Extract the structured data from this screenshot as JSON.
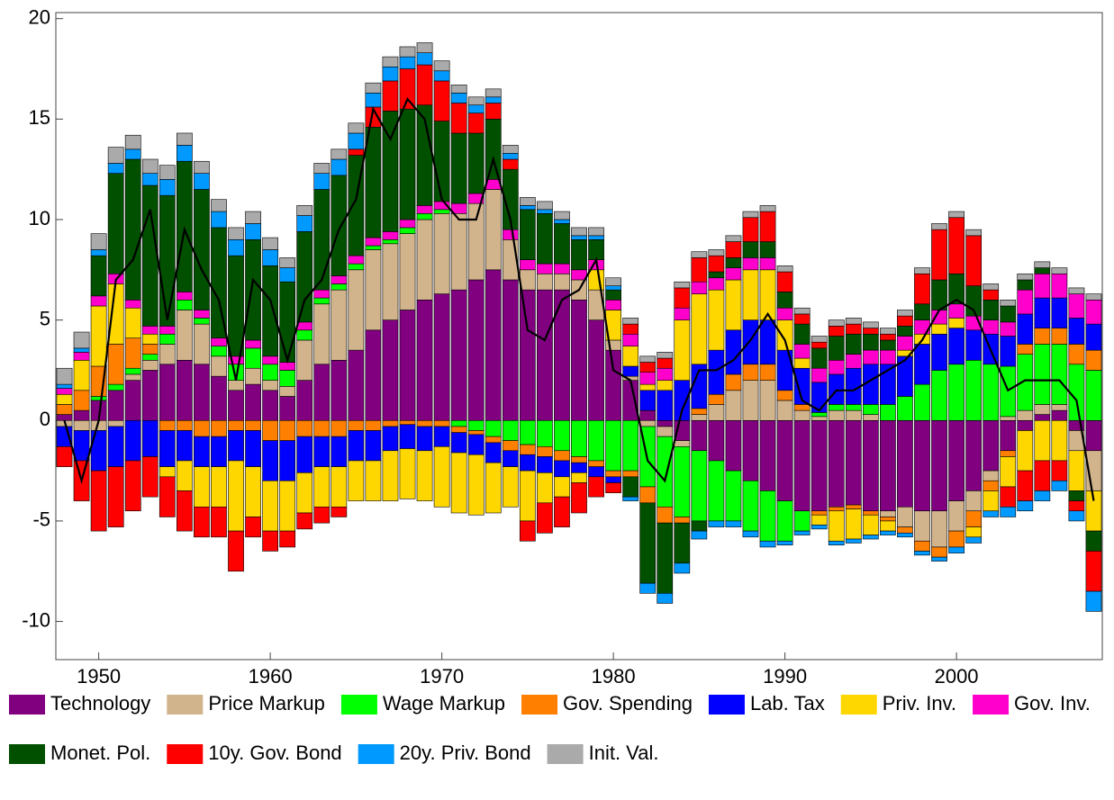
{
  "chart_data": {
    "type": "stacked-bar",
    "x": [
      1948,
      1949,
      1950,
      1951,
      1952,
      1953,
      1954,
      1955,
      1956,
      1957,
      1958,
      1959,
      1960,
      1961,
      1962,
      1963,
      1964,
      1965,
      1966,
      1967,
      1968,
      1969,
      1970,
      1971,
      1972,
      1973,
      1974,
      1975,
      1976,
      1977,
      1978,
      1979,
      1980,
      1981,
      1982,
      1983,
      1984,
      1985,
      1986,
      1987,
      1988,
      1989,
      1990,
      1991,
      1992,
      1993,
      1994,
      1995,
      1996,
      1997,
      1998,
      1999,
      2000,
      2001,
      2002,
      2003,
      2004,
      2005,
      2006,
      2007,
      2008
    ],
    "xlim": [
      1947.5,
      2008.5
    ],
    "xticks": [
      1950,
      1960,
      1970,
      1980,
      1990,
      2000
    ],
    "ylim": [
      -11.9,
      20.3
    ],
    "yticks": [
      -10,
      -5,
      0,
      5,
      10,
      15,
      20
    ],
    "series": [
      {
        "name": "Technology",
        "color": "#800080",
        "values": [
          0.3,
          0.5,
          1,
          1.5,
          2,
          2.5,
          2.8,
          3,
          2.8,
          2.2,
          1.5,
          1.8,
          1.5,
          1.2,
          2,
          2.8,
          3,
          3.5,
          4.5,
          5,
          5.5,
          6,
          6.3,
          6.5,
          7,
          7.5,
          7,
          6.5,
          6.5,
          6.5,
          6,
          5,
          3.5,
          2,
          0.5,
          -0.3,
          -1,
          -1.5,
          -2,
          -2.5,
          -3,
          -3.5,
          -4,
          -4.5,
          -4.5,
          -4.3,
          -4.2,
          -4.5,
          -4.5,
          -4.3,
          -4.5,
          -4.5,
          -4,
          -3.5,
          -2.5,
          -1.5,
          -0.5,
          0.3,
          0.5,
          -0.5,
          -1.5
        ]
      },
      {
        "name": "Price Markup",
        "color": "#d2b48c",
        "values": [
          -0.3,
          -0.5,
          -0.5,
          -0.3,
          0.3,
          0.5,
          1,
          2.5,
          2,
          1,
          0.5,
          0.8,
          0.5,
          0.5,
          2,
          3,
          3.5,
          4,
          4,
          3.8,
          3.8,
          4,
          4,
          3.8,
          3.8,
          4,
          2,
          1,
          0.8,
          0.8,
          1,
          1.5,
          0.5,
          0.2,
          -0.3,
          -0.5,
          -0.3,
          0.3,
          0.8,
          1.5,
          2,
          2,
          1,
          0.5,
          0.2,
          0.5,
          0.5,
          0.3,
          -0.3,
          -1,
          -1.5,
          -1.8,
          -1.5,
          -1,
          -0.5,
          0.2,
          0.5,
          0.5,
          0.3,
          -1,
          -2
        ]
      },
      {
        "name": "Wage Markup",
        "color": "#00ff00",
        "values": [
          0,
          0,
          0.2,
          0.3,
          0.3,
          0.3,
          0.5,
          0.5,
          0.3,
          0.5,
          0.8,
          1,
          0.8,
          0.8,
          0.5,
          0.3,
          0.3,
          0.3,
          0.2,
          0.2,
          0.3,
          0.3,
          0.2,
          -0.3,
          -0.5,
          -0.8,
          -1,
          -1.2,
          -1.3,
          -1.5,
          -1.8,
          -2,
          -2.5,
          -2.5,
          -3,
          -3.5,
          -3.5,
          -3.5,
          -3,
          -2.5,
          -2.5,
          -2.5,
          -2,
          -1,
          0.2,
          0.3,
          0.3,
          0.5,
          0.8,
          1.2,
          1.8,
          2.5,
          2.8,
          3,
          2.8,
          2.5,
          2.8,
          3,
          3,
          2.8,
          2.5
        ]
      },
      {
        "name": "Gov. Spending",
        "color": "#ff8000",
        "values": [
          0.5,
          1,
          1.5,
          2,
          1.5,
          0.5,
          -0.5,
          -0.5,
          -0.8,
          -0.8,
          -0.5,
          -0.5,
          -1,
          -1,
          -0.8,
          -0.8,
          -0.8,
          -0.5,
          -0.5,
          -0.3,
          -0.2,
          -0.3,
          -0.3,
          -0.3,
          -0.2,
          -0.3,
          -0.5,
          -0.5,
          -0.5,
          -0.5,
          -0.3,
          -0.3,
          -0.3,
          -0.3,
          -0.8,
          -0.8,
          -0.3,
          0.3,
          0.5,
          0.8,
          0.8,
          0.8,
          0.5,
          0.3,
          -0.2,
          -0.2,
          -0.2,
          -0.2,
          -0.2,
          -0.3,
          -0.5,
          -0.5,
          -0.8,
          -0.8,
          -0.5,
          -0.3,
          0.5,
          0.8,
          0.8,
          1,
          1
        ]
      },
      {
        "name": "Lab. Tax",
        "color": "#0000ff",
        "values": [
          -1,
          -1.5,
          -2,
          -2,
          -2,
          -1.8,
          -1.8,
          -1.5,
          -1.5,
          -1.5,
          -1.5,
          -1.8,
          -2,
          -2,
          -1.8,
          -1.5,
          -1.5,
          -1.5,
          -1.5,
          -1.2,
          -1.2,
          -1.2,
          -1,
          -1,
          -1,
          -1,
          -0.8,
          -0.8,
          -0.8,
          -0.8,
          -0.5,
          -0.5,
          -0.3,
          0.5,
          1,
          1.5,
          2,
          2.2,
          2.2,
          2.2,
          2.2,
          2.2,
          2,
          1.8,
          1.5,
          1.5,
          1.8,
          2,
          2,
          2,
          2,
          1.8,
          1.8,
          1.5,
          1.5,
          1.5,
          1.5,
          1.5,
          1.5,
          1.3,
          1.3
        ]
      },
      {
        "name": "Priv. Inv.",
        "color": "#ffd700",
        "values": [
          0.5,
          1.5,
          3,
          3,
          1.5,
          0.5,
          -0.5,
          -1.5,
          -2,
          -2,
          -3.5,
          -2.5,
          -2.5,
          -2.5,
          -2,
          -2,
          -2,
          -2,
          -2,
          -2.5,
          -2.5,
          -2.5,
          -3,
          -3,
          -3,
          -2.5,
          -2,
          -2.5,
          -1.5,
          -1,
          -0.5,
          1,
          1.5,
          1,
          0.3,
          0.5,
          3,
          3.5,
          3,
          2.5,
          2.5,
          2.5,
          1.5,
          0.5,
          -0.5,
          -1.5,
          -1.5,
          -1,
          -0.5,
          0.3,
          0.5,
          0.5,
          0.5,
          -0.5,
          -1,
          -1.5,
          -2,
          -2,
          -2,
          -2,
          -2
        ]
      },
      {
        "name": "Gov. Inv.",
        "color": "#ff00cc",
        "values": [
          0.3,
          0.4,
          0.5,
          0.5,
          0.4,
          0.4,
          0.4,
          0.4,
          0.4,
          0.4,
          0.4,
          0.4,
          0.4,
          0.4,
          0.4,
          0.4,
          0.4,
          0.4,
          0.4,
          0.4,
          0.4,
          0.4,
          0.4,
          0.5,
          0.5,
          0.5,
          0.5,
          0.5,
          0.5,
          0.5,
          0.5,
          0.5,
          0.5,
          0.6,
          0.6,
          0.6,
          0.6,
          0.6,
          0.6,
          0.6,
          0.6,
          0.6,
          0.6,
          0.7,
          0.7,
          0.7,
          0.7,
          0.7,
          0.7,
          0.7,
          0.7,
          0.7,
          0.7,
          0.7,
          0.7,
          0.7,
          1.2,
          1.2,
          1.2,
          1.2,
          1.2
        ]
      },
      {
        "name": "Monet. Pol.",
        "color": "#005000",
        "values": [
          0,
          0,
          2,
          5,
          7,
          7,
          6.5,
          6.5,
          6,
          5.5,
          5,
          5,
          4.5,
          4,
          4.5,
          5,
          5,
          5,
          5.5,
          6,
          5.5,
          5,
          4,
          3.5,
          3,
          3,
          3,
          2.5,
          2.5,
          2,
          1.5,
          1,
          0.5,
          -1,
          -4,
          -3.5,
          -2,
          -0.5,
          0.3,
          0.5,
          0.8,
          0.8,
          0.8,
          1,
          1,
          1.2,
          1,
          0.8,
          0.5,
          0.5,
          0.8,
          1.5,
          1.5,
          1.5,
          1,
          0.8,
          0.5,
          0.3,
          0,
          -0.5,
          -1
        ]
      },
      {
        "name": "10y. Gov. Bond",
        "color": "#ff0000",
        "values": [
          -1,
          -2,
          -3,
          -3,
          -2.5,
          -2,
          -2,
          -2,
          -1.5,
          -1.5,
          -2,
          -1,
          -1,
          -0.8,
          -0.8,
          -0.8,
          -0.5,
          0.3,
          1,
          1.5,
          2,
          2,
          2,
          1.5,
          1,
          0.8,
          0.5,
          -1,
          -1.5,
          -1.5,
          -1.5,
          -1,
          -0.5,
          0.5,
          0.5,
          0.5,
          1,
          1.2,
          0.8,
          0.8,
          1.2,
          1.5,
          1,
          0.5,
          0.3,
          0.5,
          0.5,
          0.3,
          0.3,
          0.5,
          1.5,
          2.5,
          2.8,
          2.5,
          0.5,
          -1,
          -1.5,
          -1.5,
          -1,
          -0.5,
          -2
        ]
      },
      {
        "name": "20y. Priv. Bond",
        "color": "#0099ff",
        "values": [
          0.2,
          0.2,
          0.3,
          0.5,
          0.5,
          0.6,
          0.8,
          0.8,
          0.8,
          0.8,
          0.8,
          0.8,
          0.8,
          0.7,
          0.8,
          0.8,
          0.8,
          0.8,
          0.7,
          0.7,
          0.6,
          0.6,
          0.5,
          0.5,
          0.4,
          0.3,
          0.3,
          0.2,
          0.2,
          0.2,
          0.2,
          0.2,
          0.2,
          -0.2,
          -0.5,
          -0.5,
          -0.5,
          -0.4,
          -0.3,
          -0.3,
          -0.3,
          -0.3,
          -0.2,
          -0.2,
          -0.2,
          -0.2,
          -0.2,
          -0.2,
          -0.2,
          -0.2,
          -0.2,
          -0.2,
          -0.3,
          -0.3,
          -0.3,
          -0.5,
          -0.5,
          -0.5,
          -0.5,
          -0.5,
          -1
        ]
      },
      {
        "name": "Init. Val.",
        "color": "#aaaaaa",
        "values": [
          0.8,
          0.8,
          0.8,
          0.8,
          0.7,
          0.7,
          0.7,
          0.6,
          0.6,
          0.6,
          0.6,
          0.6,
          0.6,
          0.5,
          0.5,
          0.5,
          0.5,
          0.5,
          0.5,
          0.5,
          0.5,
          0.5,
          0.5,
          0.4,
          0.4,
          0.4,
          0.4,
          0.4,
          0.4,
          0.4,
          0.4,
          0.4,
          0.4,
          0.3,
          0.3,
          0.3,
          0.3,
          0.3,
          0.3,
          0.3,
          0.3,
          0.3,
          0.3,
          0.3,
          0.3,
          0.3,
          0.3,
          0.3,
          0.3,
          0.3,
          0.3,
          0.3,
          0.3,
          0.3,
          0.3,
          0.3,
          0.3,
          0.3,
          0.3,
          0.3,
          0.3
        ]
      }
    ],
    "line": {
      "color": "#000000",
      "values": [
        0,
        -3,
        0,
        7,
        8,
        10.5,
        5,
        9.5,
        7.5,
        6,
        2,
        7,
        6,
        3,
        6,
        7,
        9.5,
        11,
        15.5,
        14,
        16,
        15,
        11,
        10,
        10,
        13,
        10,
        4.5,
        4,
        6,
        6.5,
        8,
        2.5,
        2,
        -2,
        -3,
        0.5,
        2.5,
        2.5,
        3,
        4,
        5.3,
        4,
        1,
        0.5,
        1.5,
        1.5,
        2,
        2.5,
        3,
        4,
        5.5,
        6,
        5.5,
        3.5,
        1.5,
        2,
        2,
        2,
        1,
        -4
      ]
    }
  }
}
